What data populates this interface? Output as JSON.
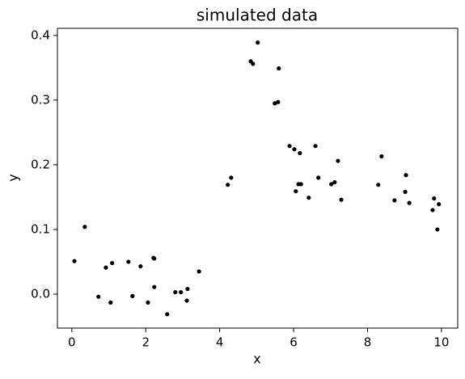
{
  "chart_data": {
    "type": "scatter",
    "title": "simulated data",
    "x_label": "x",
    "y_label": "y",
    "color": "#000000",
    "x": [
      0.07,
      0.35,
      0.72,
      0.92,
      1.05,
      1.09,
      1.53,
      1.64,
      1.86,
      2.06,
      2.21,
      2.23,
      2.23,
      2.58,
      2.8,
      2.95,
      3.11,
      3.13,
      3.44,
      4.22,
      4.31,
      4.84,
      4.9,
      5.03,
      5.49,
      5.58,
      5.6,
      5.89,
      6.02,
      6.06,
      6.13,
      6.2,
      6.17,
      6.41,
      6.59,
      6.67,
      7.02,
      7.11,
      7.2,
      7.29,
      8.29,
      8.38,
      8.73,
      9.02,
      9.04,
      9.13,
      9.76,
      9.8,
      9.89,
      9.93
    ],
    "y": [
      0.051,
      0.104,
      -0.004,
      0.041,
      -0.013,
      0.048,
      0.05,
      -0.003,
      0.043,
      -0.013,
      0.056,
      0.055,
      0.011,
      -0.031,
      0.003,
      0.003,
      -0.01,
      0.008,
      0.035,
      0.169,
      0.18,
      0.36,
      0.356,
      0.389,
      0.295,
      0.297,
      0.349,
      0.229,
      0.224,
      0.159,
      0.17,
      0.17,
      0.218,
      0.149,
      0.229,
      0.18,
      0.17,
      0.173,
      0.206,
      0.146,
      0.169,
      0.213,
      0.145,
      0.158,
      0.184,
      0.141,
      0.13,
      0.148,
      0.1,
      0.139
    ],
    "xlim": [
      -0.39,
      10.44
    ],
    "ylim": [
      -0.0525,
      0.411
    ],
    "xticks": [
      0,
      2,
      4,
      6,
      8,
      10
    ],
    "yticks": [
      {
        "value": 0,
        "label": "0.0"
      },
      0.1,
      0.2,
      0.3,
      0.4
    ]
  }
}
